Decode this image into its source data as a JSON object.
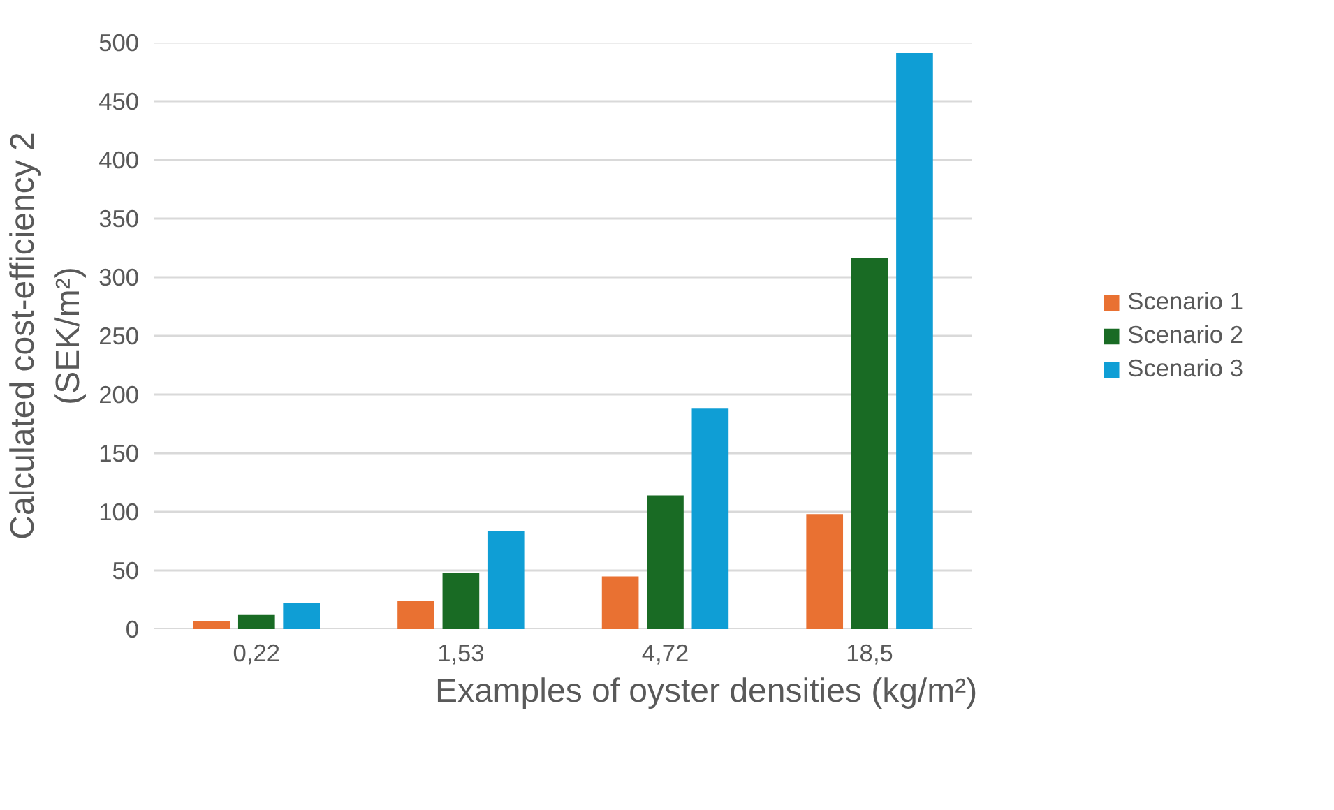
{
  "chart_data": {
    "type": "bar",
    "categories": [
      "0,22",
      "1,53",
      "4,72",
      "18,5"
    ],
    "series": [
      {
        "name": "Scenario 1",
        "color": "#e97132",
        "values": [
          7,
          24,
          45,
          98
        ]
      },
      {
        "name": "Scenario 2",
        "color": "#196b24",
        "values": [
          12,
          48,
          114,
          316
        ]
      },
      {
        "name": "Scenario 3",
        "color": "#0f9ed5",
        "values": [
          22,
          84,
          188,
          491
        ]
      }
    ],
    "xlabel": "Examples of oyster densities (kg/m²)",
    "ylabel": "Calculated cost-efficiency 2\n(SEK/m²)",
    "ylim": [
      0,
      500
    ],
    "yticks": [
      0,
      50,
      100,
      150,
      200,
      250,
      300,
      350,
      400,
      450,
      500
    ],
    "grid": "y",
    "legend": "right"
  }
}
